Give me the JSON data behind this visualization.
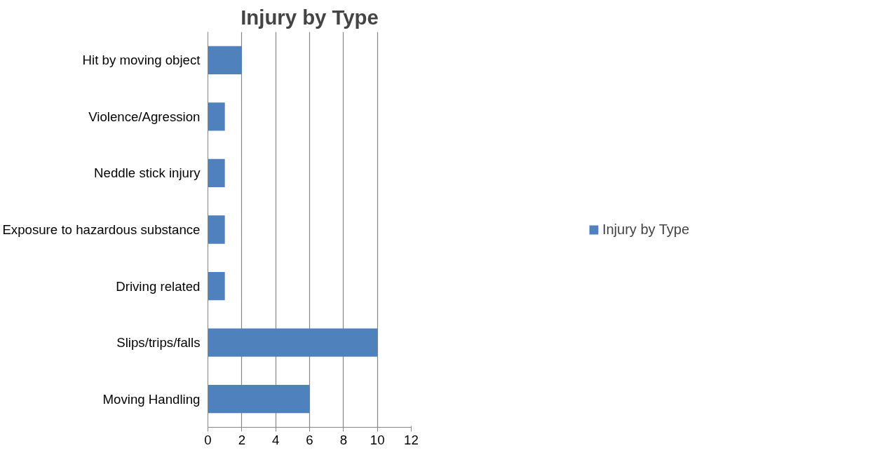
{
  "chart_data": {
    "type": "bar",
    "orientation": "horizontal",
    "title": "Injury by Type",
    "categories": [
      "Hit by moving object",
      "Violence/Agression",
      "Neddle stick injury",
      "Exposure to hazardous substance",
      "Driving related",
      "Slips/trips/falls",
      "Moving Handling"
    ],
    "series": [
      {
        "name": "Injury by Type",
        "color": "#4f81bd",
        "values": [
          2,
          1,
          1,
          1,
          1,
          10,
          6
        ]
      }
    ],
    "xlim": [
      0,
      12
    ],
    "xticks": [
      0,
      2,
      4,
      6,
      8,
      10,
      12
    ],
    "grid": "x",
    "legend": "right"
  }
}
